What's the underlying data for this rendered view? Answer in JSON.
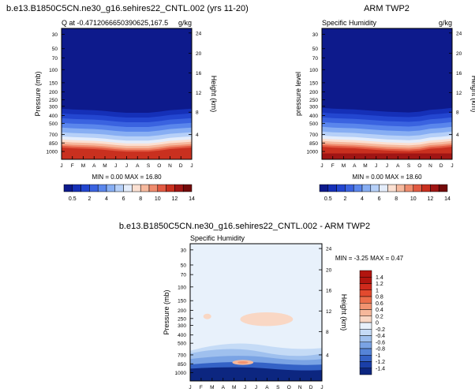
{
  "chart_data": [
    {
      "type": "heatmap",
      "suptitle": "b.e13.B1850C5CN.ne30_g16.sehires22_CNTL.002 (yrs 11-20)",
      "title_left": "Q at -0.4712066650390625,167.5",
      "title_right": "g/kg",
      "ylabel": "Pressure (mb)",
      "ylabel_right": "Height (km)",
      "x_ticks": [
        "J",
        "F",
        "M",
        "A",
        "M",
        "J",
        "J",
        "A",
        "S",
        "O",
        "N",
        "D",
        "J"
      ],
      "y_ticks": [
        "30",
        "50",
        "70",
        "100",
        "150",
        "200",
        "250",
        "300",
        "400",
        "500",
        "700",
        "850",
        "1000"
      ],
      "height_ticks": [
        "24",
        "20",
        "16",
        "12",
        "8",
        "4"
      ],
      "stats": "MIN =   0.00 MAX =  16.80",
      "colorbar_labels": [
        "0.5",
        "2",
        "4",
        "6",
        "8",
        "10",
        "12",
        "14"
      ],
      "surface_max": 16.8,
      "midlevel_transition": [
        330,
        340,
        345,
        350,
        360,
        375,
        385,
        385,
        385,
        370,
        350,
        340,
        330
      ]
    },
    {
      "type": "heatmap",
      "suptitle": "ARM TWP2",
      "title_left": "Specific Humidity",
      "title_right": "g/kg",
      "ylabel": "pressure level",
      "ylabel_right": "Height (km)",
      "x_ticks": [
        "J",
        "F",
        "M",
        "A",
        "M",
        "J",
        "J",
        "A",
        "S",
        "O",
        "N",
        "D",
        "J"
      ],
      "y_ticks": [
        "30",
        "50",
        "70",
        "100",
        "150",
        "200",
        "250",
        "300",
        "400",
        "500",
        "700",
        "850",
        "1000"
      ],
      "height_ticks": [
        "24",
        "20",
        "16",
        "12",
        "8",
        "4"
      ],
      "stats": "MIN =   0.00 MAX =  18.60",
      "colorbar_labels": [
        "0.5",
        "2",
        "4",
        "6",
        "8",
        "10",
        "12",
        "14"
      ],
      "surface_max": 18.6,
      "midlevel_transition": [
        320,
        330,
        335,
        340,
        350,
        360,
        370,
        375,
        380,
        370,
        345,
        335,
        320
      ]
    },
    {
      "type": "heatmap",
      "suptitle": "b.e13.B1850C5CN.ne30_g16.sehires22_CNTL.002 - ARM TWP2",
      "title_left": "Specific Humidity",
      "ylabel": "Pressure (mb)",
      "ylabel_right": "Height (km)",
      "x_ticks": [
        "J",
        "F",
        "M",
        "A",
        "M",
        "J",
        "J",
        "A",
        "S",
        "O",
        "N",
        "D",
        "J"
      ],
      "y_ticks": [
        "30",
        "50",
        "70",
        "100",
        "150",
        "200",
        "250",
        "300",
        "400",
        "500",
        "700",
        "850",
        "1000"
      ],
      "height_ticks": [
        "24",
        "20",
        "16",
        "12",
        "8",
        "4"
      ],
      "stats": "MIN =  -3.25 MAX =   0.47",
      "colorbar_labels": [
        "1.4",
        "1.2",
        "1",
        "0.8",
        "0.6",
        "0.4",
        "0.2",
        "0",
        "-0.2",
        "-0.4",
        "-0.6",
        "-0.8",
        "-1",
        "-1.2",
        "-1.4"
      ],
      "diff_min": -3.25,
      "diff_max": 0.47
    }
  ],
  "colors": {
    "seq": [
      "#0d1a8c",
      "#1530b8",
      "#2346d0",
      "#3a63e0",
      "#5a86ec",
      "#87aef3",
      "#b6d0f8",
      "#e4edfb",
      "#fbe0d2",
      "#f6b99e",
      "#ef8c6e",
      "#e25a42",
      "#c9301f",
      "#a01514",
      "#730a0a"
    ],
    "div": [
      "#b2150f",
      "#d02a1c",
      "#e34a2e",
      "#ec6e4b",
      "#f29370",
      "#f6b89b",
      "#f9d7c4",
      "#e8f1fb",
      "#c5dbf6",
      "#9fc0ee",
      "#7aa3e4",
      "#5584d8",
      "#3462c6",
      "#1a3fa8",
      "#0c2680"
    ]
  }
}
